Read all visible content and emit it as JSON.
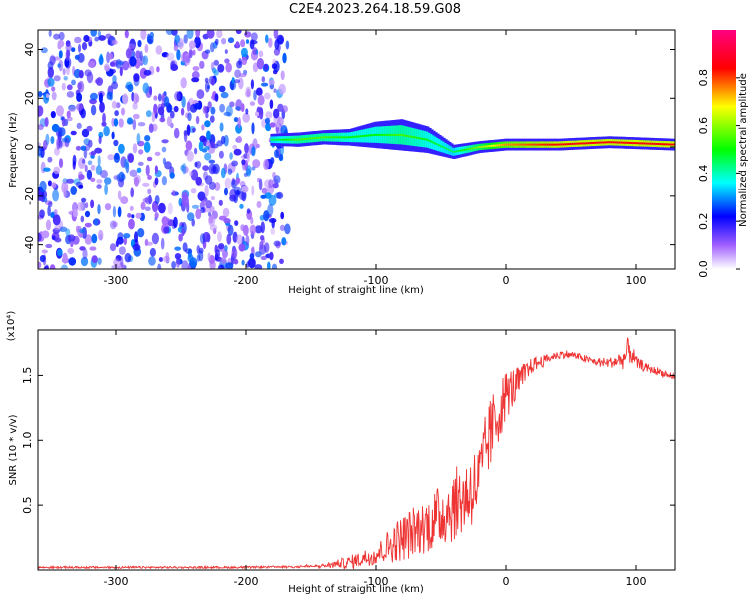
{
  "title": "C2E4.2023.264.18.59.G08",
  "chart_data": [
    {
      "type": "heatmap",
      "xlabel": "Height of straight line (km)",
      "ylabel": "Frequency (Hz)",
      "xlim": [
        -360,
        130
      ],
      "ylim": [
        -50,
        48
      ],
      "xticks": [
        -300,
        -200,
        -100,
        0,
        100
      ],
      "yticks": [
        -40,
        -20,
        0,
        20,
        40
      ],
      "colorbar": {
        "label": "Normalized spectral amplitude",
        "range": [
          0.0,
          1.0
        ],
        "ticks": [
          "0.0",
          "0.2",
          "0.4",
          "0.6",
          "0.8"
        ],
        "colors": [
          "#ffffff",
          "#7a00ff",
          "#0000ff",
          "#00ffff",
          "#00ff00",
          "#ffff00",
          "#ff0000",
          "#ff0080"
        ]
      },
      "noise_region": {
        "x_from": -360,
        "x_to": -168,
        "amplitude": 0.25
      },
      "signal_track": [
        {
          "x": -180,
          "freq": 3,
          "width": 4,
          "amp": 0.45
        },
        {
          "x": -160,
          "freq": 3,
          "width": 5,
          "amp": 0.55
        },
        {
          "x": -140,
          "freq": 4,
          "width": 5,
          "amp": 0.55
        },
        {
          "x": -120,
          "freq": 4,
          "width": 6,
          "amp": 0.5
        },
        {
          "x": -100,
          "freq": 5,
          "width": 10,
          "amp": 0.5
        },
        {
          "x": -80,
          "freq": 5,
          "width": 12,
          "amp": 0.55
        },
        {
          "x": -60,
          "freq": 3,
          "width": 10,
          "amp": 0.5
        },
        {
          "x": -40,
          "freq": -2,
          "width": 5,
          "amp": 0.45
        },
        {
          "x": -20,
          "freq": 0,
          "width": 4,
          "amp": 0.6
        },
        {
          "x": 0,
          "freq": 1,
          "width": 4,
          "amp": 0.75
        },
        {
          "x": 40,
          "freq": 1,
          "width": 4,
          "amp": 0.85
        },
        {
          "x": 80,
          "freq": 2,
          "width": 4,
          "amp": 0.85
        },
        {
          "x": 130,
          "freq": 1,
          "width": 4,
          "amp": 0.85
        }
      ]
    },
    {
      "type": "line",
      "xlabel": "Height of straight line (km)",
      "ylabel": "SNR (10 * v/v)",
      "y_multiplier": "(x10⁴)",
      "xlim": [
        -360,
        130
      ],
      "ylim": [
        0,
        1.85
      ],
      "xticks": [
        -300,
        -200,
        -100,
        0,
        100
      ],
      "yticks": [
        0.5,
        1.0,
        1.5
      ],
      "ytick_labels": [
        "0.5",
        "1.0",
        "1.5"
      ],
      "color": "#ee3333",
      "x": [
        -360,
        -300,
        -200,
        -140,
        -120,
        -100,
        -80,
        -60,
        -40,
        -30,
        -20,
        -15,
        -10,
        0,
        10,
        20,
        30,
        40,
        50,
        60,
        70,
        80,
        90,
        95,
        100,
        110,
        120,
        130
      ],
      "y": [
        0.02,
        0.02,
        0.02,
        0.03,
        0.06,
        0.12,
        0.25,
        0.35,
        0.5,
        0.58,
        0.7,
        0.95,
        1.1,
        1.35,
        1.45,
        1.58,
        1.62,
        1.66,
        1.66,
        1.63,
        1.6,
        1.6,
        1.62,
        1.7,
        1.6,
        1.55,
        1.52,
        1.48
      ],
      "noise": [
        0.0,
        0.0,
        0.0,
        0.01,
        0.05,
        0.08,
        0.18,
        0.22,
        0.28,
        0.3,
        0.3,
        0.3,
        0.28,
        0.2,
        0.12,
        0.06,
        0.04,
        0.03,
        0.03,
        0.03,
        0.03,
        0.04,
        0.08,
        0.12,
        0.05,
        0.03,
        0.03,
        0.03
      ]
    }
  ]
}
